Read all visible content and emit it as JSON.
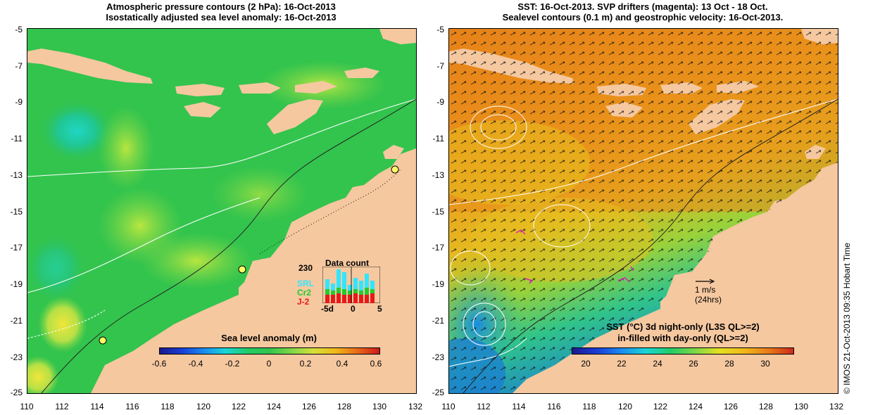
{
  "left": {
    "title_line1": "Atmospheric pressure contours (2 hPa): 16-Oct-2013",
    "title_line2": "Isostatically adjusted sea level anomaly: 16-Oct-2013",
    "colorbar": {
      "label": "Sea level anomaly (m)",
      "ticks": [
        "-0.6",
        "-0.4",
        "-0.2",
        "0",
        "0.2",
        "0.4",
        "0.6"
      ]
    },
    "data_count": {
      "title": "Data count",
      "max": "230",
      "series": [
        "SRL",
        "Cr2",
        "J-2"
      ],
      "x_ticks": [
        "-5d",
        "0",
        "5"
      ]
    }
  },
  "right": {
    "title_line1": "SST: 16-Oct-2013. SVP drifters (magenta): 13 Oct - 18 Oct.",
    "title_line2": "Sealevel contours (0.1 m) and geostrophic velocity: 16-Oct-2013.",
    "velocity_scale": {
      "label": "1 m/s",
      "sub": "(24hrs)"
    },
    "colorbar": {
      "label_line1": "SST (°C)  3d night-only (L3S QL>=2)",
      "label_line2": "in-filled with day-only (QL>=2)",
      "ticks": [
        "20",
        "22",
        "24",
        "26",
        "28",
        "30"
      ]
    }
  },
  "axes": {
    "y_ticks": [
      "-5",
      "-7",
      "-9",
      "-11",
      "-13",
      "-15",
      "-17",
      "-19",
      "-21",
      "-23",
      "-25"
    ],
    "x_ticks": [
      "110",
      "112",
      "114",
      "116",
      "118",
      "120",
      "122",
      "124",
      "126",
      "128",
      "130",
      "132"
    ]
  },
  "credit": "© IMOS 21-Oct-2013 09:35 Hobart Time",
  "colors": {
    "land": "#f5c8a0",
    "ocean_left": "#33c44d",
    "ocean_right": "#e88a1a"
  }
}
